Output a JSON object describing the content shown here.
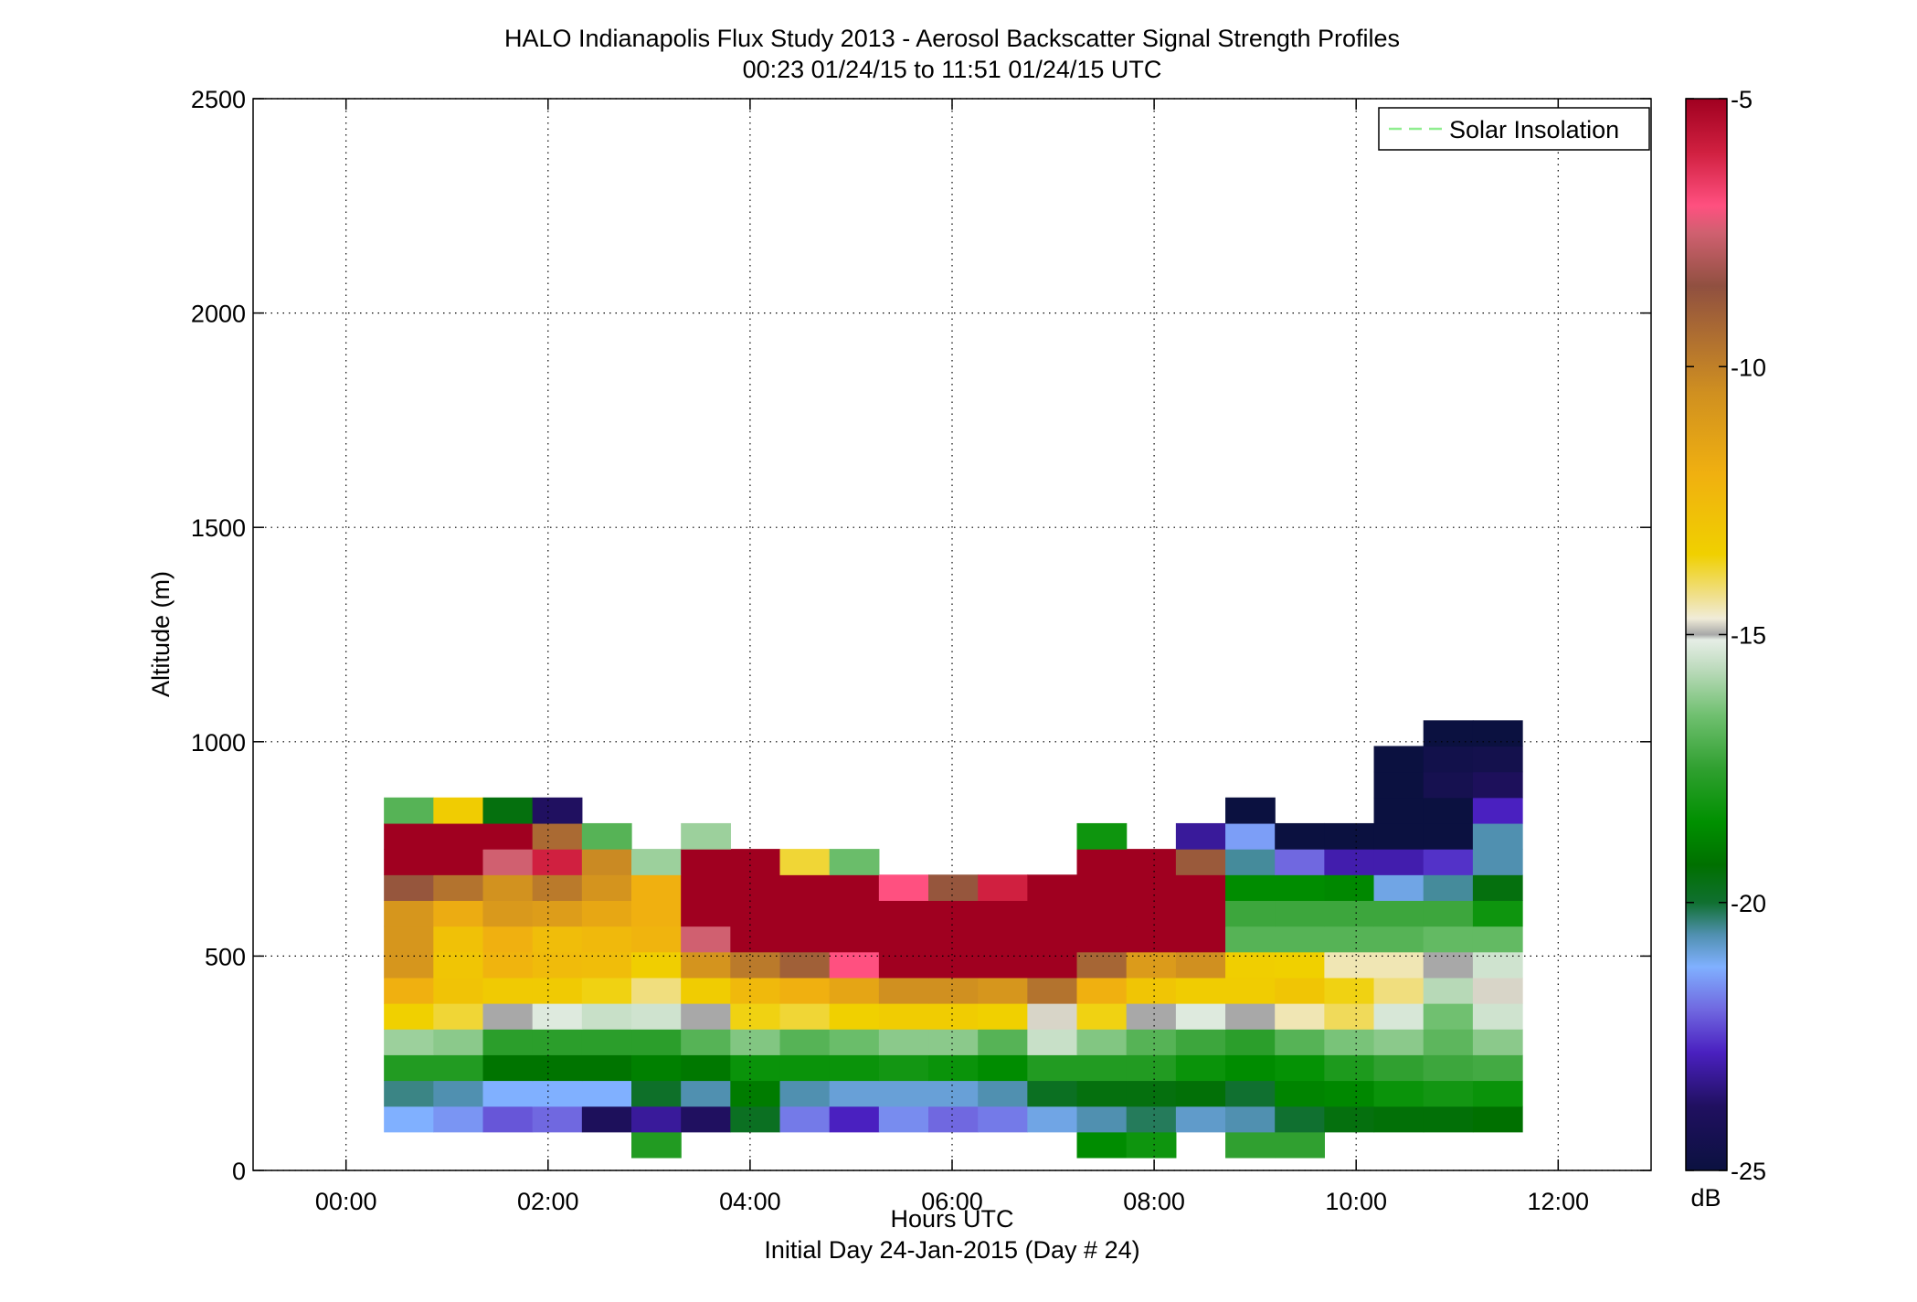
{
  "chart_data": {
    "type": "heatmap",
    "title": "HALO Indianapolis Flux Study 2013 - Aerosol Backscatter Signal Strength Profiles",
    "subtitle": "00:23 01/24/15 to 11:51 01/24/15  UTC",
    "xlabel": "Hours UTC",
    "xlabel2": "Initial Day 24-Jan-2015 (Day # 24)",
    "ylabel": "Altitude (m)",
    "xlim": [
      -0.92,
      12.92
    ],
    "ylim": [
      0,
      2500
    ],
    "x_ticks": [
      0,
      2,
      4,
      6,
      8,
      10,
      12
    ],
    "x_tick_labels": [
      "00:00",
      "02:00",
      "04:00",
      "06:00",
      "08:00",
      "10:00",
      "12:00"
    ],
    "y_ticks": [
      0,
      500,
      1000,
      1500,
      2000,
      2500
    ],
    "y_tick_labels": [
      "0",
      "500",
      "1000",
      "1500",
      "2000",
      "2500"
    ],
    "grid": true,
    "legend": {
      "entries": [
        "Solar Insolation"
      ],
      "position": "top-right",
      "line_color": "#90ee90",
      "line_style": "dashed"
    },
    "colorbar": {
      "label": "dB",
      "range": [
        -25,
        -5
      ],
      "ticks": [
        -5,
        -10,
        -15,
        -20,
        -25
      ],
      "tick_labels": [
        "-5",
        "-10",
        "-15",
        "-20",
        "-25"
      ],
      "stops": [
        {
          "v": -25.0,
          "c": "#0b1140"
        },
        {
          "v": -23.8,
          "c": "#201060"
        },
        {
          "v": -22.8,
          "c": "#4a20c0"
        },
        {
          "v": -22.0,
          "c": "#7068e0"
        },
        {
          "v": -21.2,
          "c": "#80b0ff"
        },
        {
          "v": -20.6,
          "c": "#5090b0"
        },
        {
          "v": -20.0,
          "c": "#107030"
        },
        {
          "v": -19.3,
          "c": "#007000"
        },
        {
          "v": -18.5,
          "c": "#009000"
        },
        {
          "v": -17.5,
          "c": "#30a030"
        },
        {
          "v": -16.5,
          "c": "#70c070"
        },
        {
          "v": -15.6,
          "c": "#c0dcc0"
        },
        {
          "v": -15.1,
          "c": "#e6eee6"
        },
        {
          "v": -15.0,
          "c": "#a8a8a8"
        },
        {
          "v": -14.7,
          "c": "#f0ecd8"
        },
        {
          "v": -14.3,
          "c": "#f0e090"
        },
        {
          "v": -13.5,
          "c": "#f0d000"
        },
        {
          "v": -12.0,
          "c": "#f0b010"
        },
        {
          "v": -10.5,
          "c": "#d09020"
        },
        {
          "v": -9.5,
          "c": "#b07030"
        },
        {
          "v": -8.5,
          "c": "#905040"
        },
        {
          "v": -7.5,
          "c": "#d06070"
        },
        {
          "v": -7.0,
          "c": "#ff5080"
        },
        {
          "v": -6.0,
          "c": "#d02040"
        },
        {
          "v": -5.0,
          "c": "#a00020"
        }
      ]
    },
    "columns_x_hours": [
      0.62,
      1.11,
      1.6,
      2.09,
      2.58,
      3.07,
      3.56,
      4.05,
      4.54,
      5.03,
      5.52,
      6.01,
      6.5,
      6.99,
      7.48,
      7.97,
      8.46,
      8.95,
      9.44,
      9.93,
      10.42,
      10.91,
      11.4
    ],
    "rows_altitude_m": [
      60,
      120,
      180,
      240,
      300,
      360,
      420,
      480,
      540,
      600,
      660,
      720,
      780,
      840,
      900,
      960,
      1020
    ],
    "column_width_hours": 0.49,
    "row_height_m": 60,
    "values_db": [
      [
        null,
        null,
        null,
        null,
        null,
        -17.8,
        null,
        null,
        null,
        null,
        null,
        null,
        null,
        null,
        -18.6,
        -18.2,
        null,
        -17.5,
        -17.5,
        null,
        null,
        null,
        null
      ],
      [
        -21.2,
        -21.5,
        -22.2,
        -22.0,
        -24.0,
        -23.2,
        -23.8,
        -19.8,
        -21.8,
        -22.8,
        -21.6,
        -22.0,
        -21.8,
        -21.0,
        -20.6,
        -20.2,
        -20.8,
        -20.6,
        -20.0,
        -19.5,
        -19.4,
        -19.4,
        -19.3
      ],
      [
        -20.4,
        -20.6,
        -21.2,
        -21.2,
        -21.2,
        -19.9,
        -20.6,
        -19.0,
        -20.6,
        -20.9,
        -20.9,
        -20.9,
        -20.6,
        -19.8,
        -19.5,
        -19.5,
        -19.4,
        -20.0,
        -18.8,
        -18.7,
        -18.3,
        -18.1,
        -18.3
      ],
      [
        -17.8,
        -17.8,
        -19.2,
        -19.2,
        -19.2,
        -18.9,
        -19.1,
        -18.3,
        -18.3,
        -18.3,
        -18.1,
        -18.3,
        -18.6,
        -17.8,
        -17.8,
        -17.8,
        -18.3,
        -18.6,
        -18.4,
        -17.9,
        -17.5,
        -17.3,
        -17.2
      ],
      [
        -16.0,
        -16.2,
        -17.6,
        -17.6,
        -17.6,
        -17.6,
        -16.9,
        -16.3,
        -16.9,
        -16.6,
        -16.2,
        -16.2,
        -16.9,
        -15.5,
        -16.3,
        -16.9,
        -17.3,
        -17.6,
        -16.9,
        -16.4,
        -16.2,
        -16.8,
        -16.2
      ],
      [
        -13.5,
        -13.8,
        -15.0,
        -15.2,
        -15.5,
        -15.4,
        -15.0,
        -13.6,
        -13.8,
        -13.5,
        -13.3,
        -13.3,
        -13.5,
        -14.8,
        -13.6,
        -15.0,
        -15.2,
        -15.0,
        -14.5,
        -14.0,
        -15.3,
        -16.5,
        -15.4
      ],
      [
        -12.0,
        -12.9,
        -13.2,
        -13.2,
        -13.6,
        -14.2,
        -13.3,
        -12.4,
        -12.0,
        -11.5,
        -10.5,
        -10.5,
        -10.8,
        -9.6,
        -12.0,
        -13.0,
        -13.3,
        -13.3,
        -13.0,
        -13.6,
        -14.2,
        -15.7,
        -14.8
      ],
      [
        -10.8,
        -13.0,
        -12.2,
        -12.5,
        -12.6,
        -13.4,
        -10.7,
        -9.8,
        -9.0,
        -7.0,
        -5.0,
        -5.0,
        -5.0,
        -5.0,
        -9.2,
        -11.0,
        -10.5,
        -13.4,
        -13.5,
        -14.5,
        -14.5,
        -15.0,
        -15.4
      ],
      [
        -10.8,
        -12.8,
        -12.0,
        -12.6,
        -12.4,
        -12.2,
        -7.5,
        -5.0,
        -5.0,
        -5.0,
        -5.0,
        -5.0,
        -5.0,
        -5.0,
        -5.0,
        -5.0,
        -5.0,
        -16.9,
        -16.9,
        -16.9,
        -16.9,
        -16.7,
        -16.7
      ],
      [
        -10.8,
        -11.8,
        -10.9,
        -11.1,
        -11.6,
        -12.0,
        -5.0,
        -5.0,
        -5.0,
        -5.0,
        -5.0,
        -5.0,
        -5.0,
        -5.0,
        -5.0,
        -5.0,
        -5.0,
        -17.3,
        -17.3,
        -17.3,
        -17.3,
        -17.3,
        -18.2
      ],
      [
        -8.7,
        -9.6,
        -10.6,
        -9.8,
        -10.7,
        -12.0,
        -5.0,
        -5.0,
        -5.0,
        -5.0,
        -7.0,
        -8.7,
        -6.0,
        -5.0,
        -5.0,
        -5.0,
        -5.0,
        -18.6,
        -18.6,
        -18.7,
        -21.0,
        -20.5,
        -19.5
      ],
      [
        -5.0,
        -5.0,
        -7.5,
        -6.0,
        -10.3,
        -16.0,
        -5.0,
        -5.0,
        -13.8,
        -16.6,
        null,
        null,
        null,
        null,
        -5.0,
        -5.0,
        -8.8,
        -20.5,
        -22.0,
        -23.0,
        -23.0,
        -22.6,
        -20.6
      ],
      [
        -5.0,
        -5.0,
        -5.0,
        -9.3,
        -16.9,
        null,
        -16.0,
        null,
        null,
        null,
        null,
        null,
        null,
        null,
        -18.2,
        null,
        -23.2,
        -21.4,
        -25.0,
        -25.0,
        -25.0,
        -25.0,
        -20.6
      ],
      [
        -16.9,
        -13.3,
        -19.5,
        -23.8,
        null,
        null,
        null,
        null,
        null,
        null,
        null,
        null,
        null,
        null,
        null,
        null,
        null,
        -25.0,
        null,
        null,
        -25.0,
        -25.0,
        -22.8
      ],
      [
        null,
        null,
        null,
        null,
        null,
        null,
        null,
        null,
        null,
        null,
        null,
        null,
        null,
        null,
        null,
        null,
        null,
        null,
        null,
        null,
        -25.0,
        -24.4,
        -24.0
      ],
      [
        null,
        null,
        null,
        null,
        null,
        null,
        null,
        null,
        null,
        null,
        null,
        null,
        null,
        null,
        null,
        null,
        null,
        null,
        null,
        null,
        -25.0,
        -24.6,
        -24.5
      ],
      [
        null,
        null,
        null,
        null,
        null,
        null,
        null,
        null,
        null,
        null,
        null,
        null,
        null,
        null,
        null,
        null,
        null,
        null,
        null,
        null,
        null,
        -25.0,
        -25.0
      ]
    ]
  }
}
